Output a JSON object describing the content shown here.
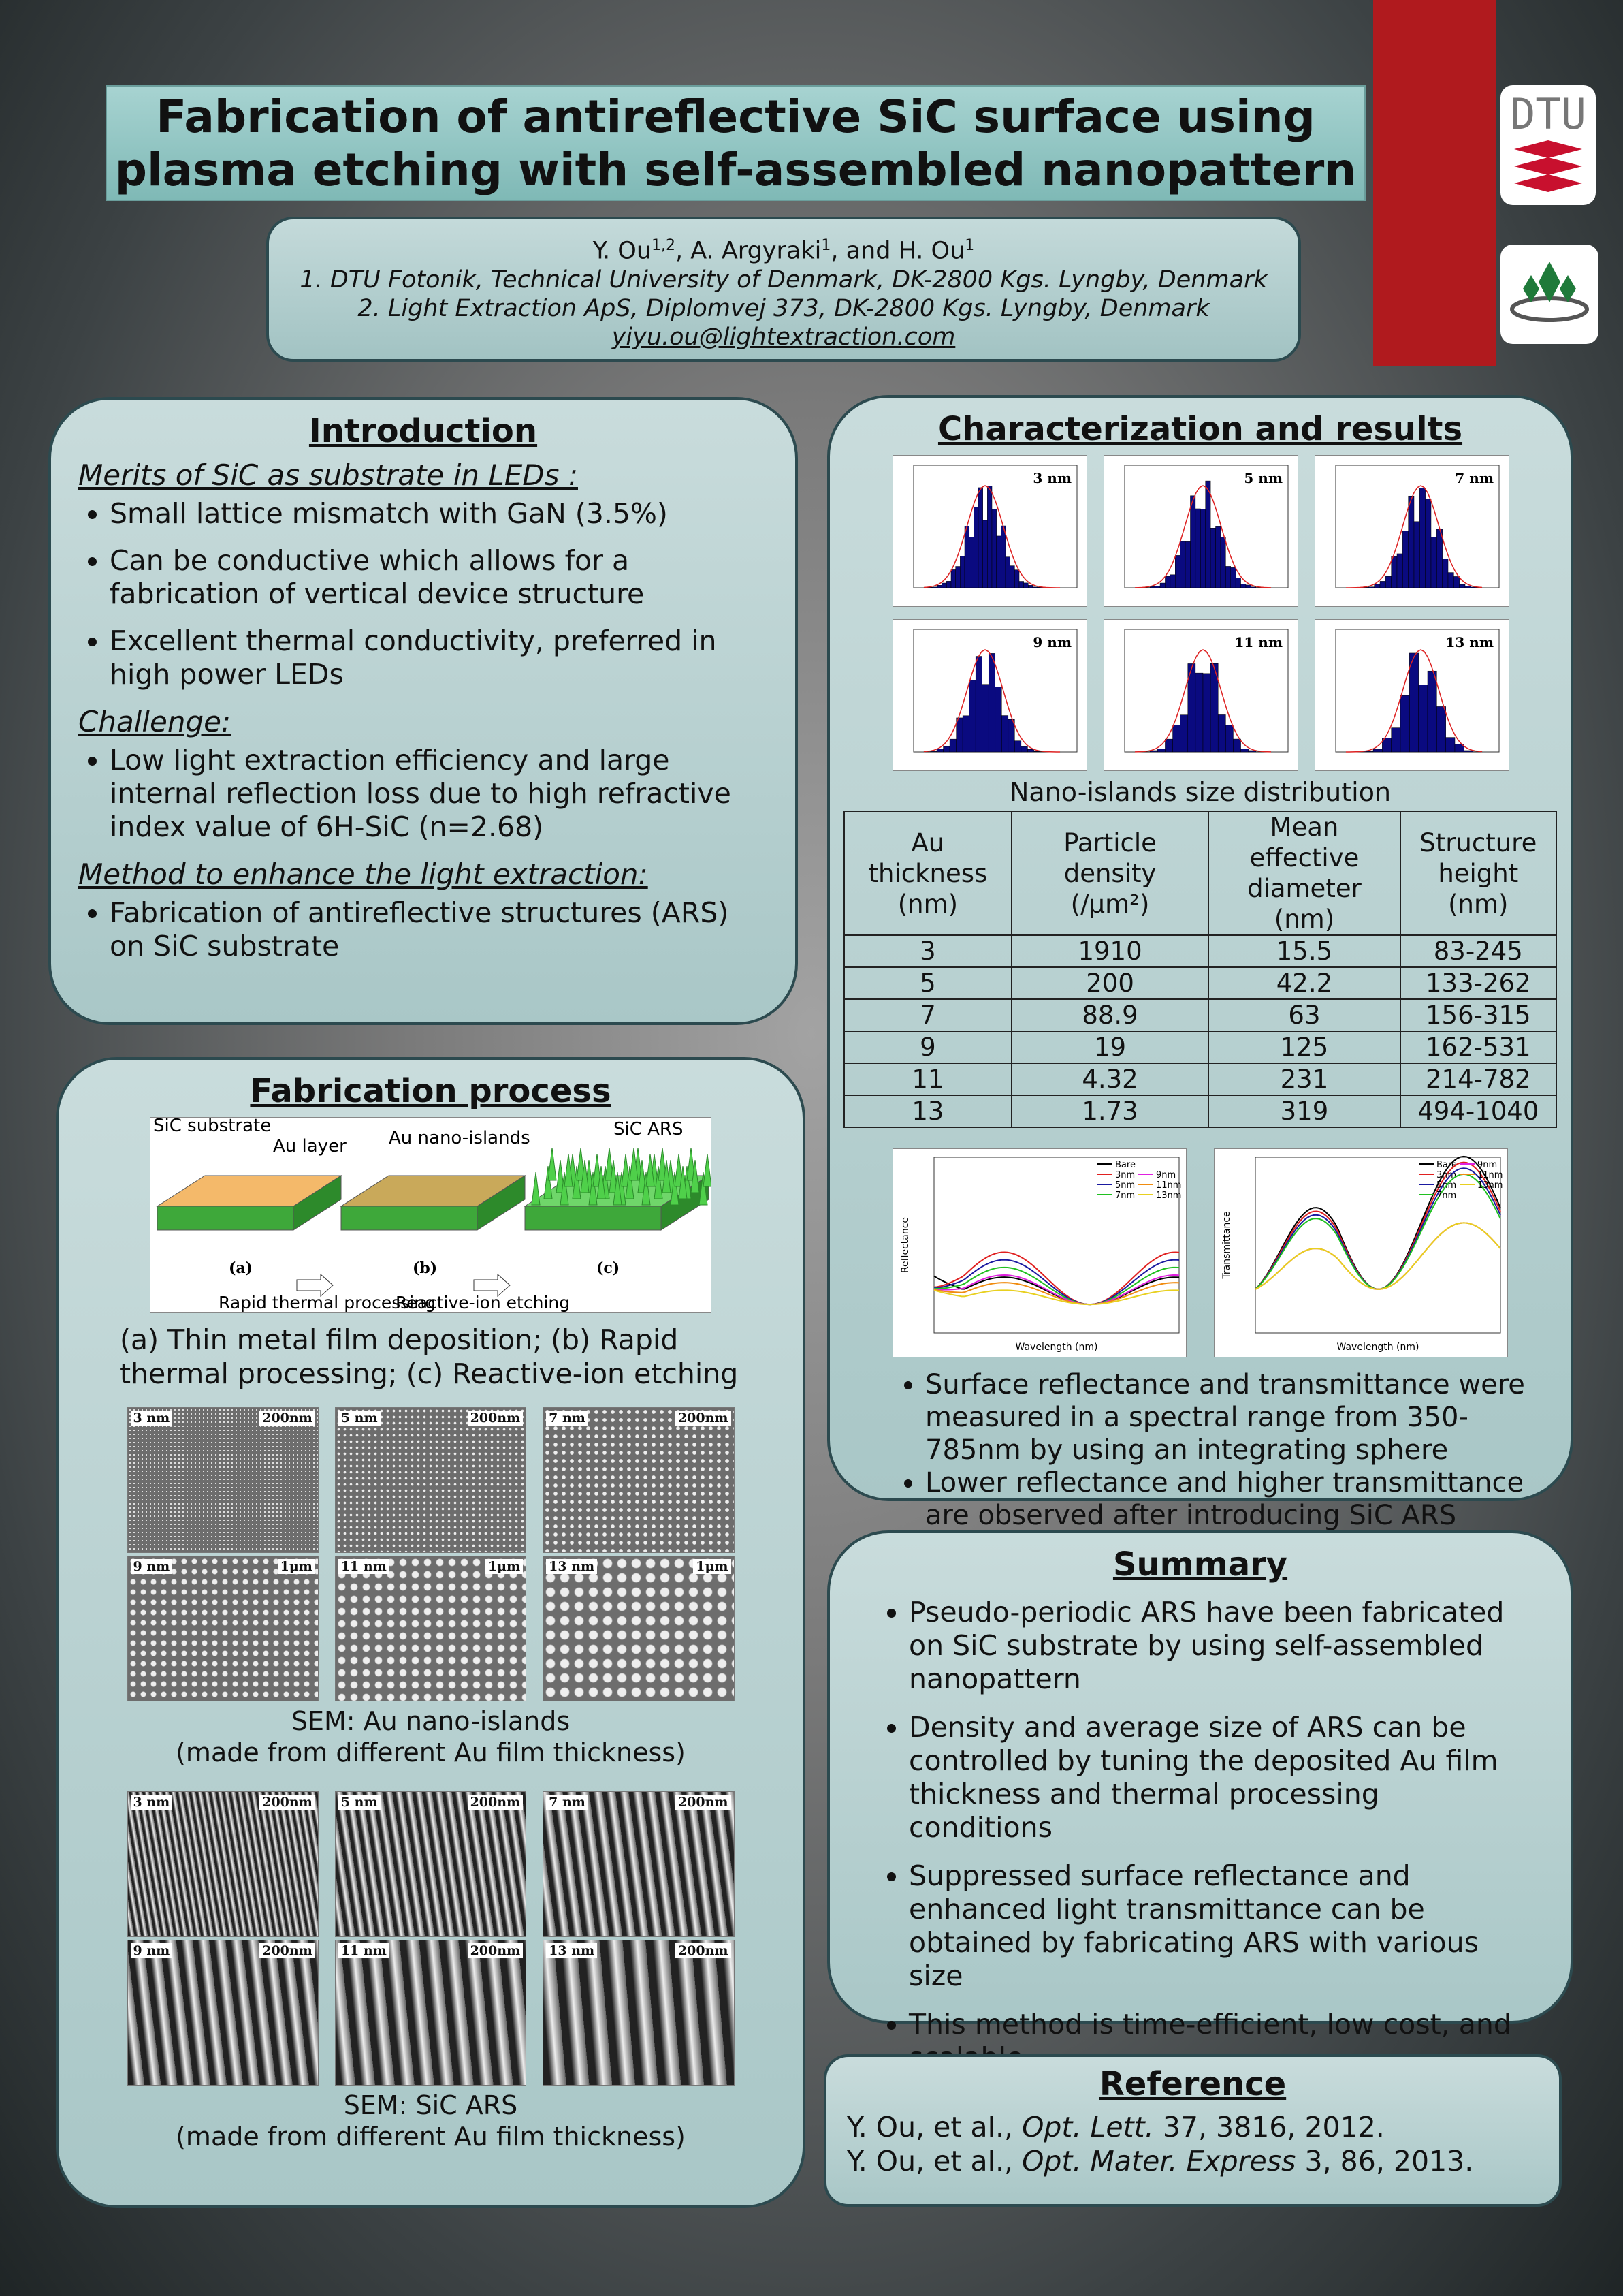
{
  "header": {
    "title": [
      "Fabrication of antireflective SiC surface using",
      "plasma etching with self-assembled nanopattern"
    ],
    "authors": [
      {
        "name": "Y. Ou",
        "affiliation": "1,2"
      },
      {
        "name": "A. Argyraki",
        "affiliation": "1"
      },
      {
        "name": "H. Ou",
        "affiliation": "1"
      }
    ],
    "author_separators": [
      ", ",
      ", and "
    ],
    "affiliations": [
      "1. DTU Fotonik, Technical University of Denmark, DK-2800 Kgs. Lyngby, Denmark",
      "2. Light Extraction ApS, Diplomvej 373, DK-2800 Kgs. Lyngby, Denmark"
    ],
    "email": "yiyu.ou@lightextraction.com"
  },
  "logos": {
    "dtu": "DTU"
  },
  "introduction": {
    "heading": "Introduction",
    "groups": [
      {
        "subheading": "Merits of SiC as substrate in LEDs :",
        "bullets": [
          "Small lattice mismatch with GaN (3.5%)",
          "Can be conductive which allows for a fabrication of vertical device structure",
          "Excellent thermal conductivity, preferred in high power LEDs"
        ]
      },
      {
        "subheading": "Challenge:",
        "bullets": [
          "Low light extraction efficiency and large internal reflection loss due to high refractive index value of 6H-SiC (n=2.68)"
        ]
      },
      {
        "subheading": "Method to enhance the light extraction:",
        "bullets": [
          "Fabrication of antireflective structures (ARS) on SiC substrate"
        ]
      }
    ]
  },
  "fabrication": {
    "heading": "Fabrication process",
    "schematic": {
      "substrate": "SiC substrate",
      "layer": "Au layer",
      "islands": "Au nano-islands",
      "ars": "SiC ARS",
      "steps": [
        "(a)",
        "(b)",
        "(c)"
      ],
      "arrows": [
        "Rapid thermal processing",
        "Reactive-ion etching"
      ]
    },
    "schematic_caption": "(a) Thin metal film deposition; (b) Rapid thermal processing; (c) Reactive-ion etching",
    "sem_islands": {
      "panels": [
        {
          "thickness": "3 nm",
          "scale": "200nm"
        },
        {
          "thickness": "5 nm",
          "scale": "200nm"
        },
        {
          "thickness": "7 nm",
          "scale": "200nm"
        },
        {
          "thickness": "9 nm",
          "scale": "1μm"
        },
        {
          "thickness": "11 nm",
          "scale": "1μm"
        },
        {
          "thickness": "13 nm",
          "scale": "1μm"
        }
      ],
      "caption": [
        "SEM: Au nano-islands",
        "(made from different Au film thickness)"
      ]
    },
    "sem_ars": {
      "panels": [
        {
          "thickness": "3 nm",
          "scale": "200nm"
        },
        {
          "thickness": "5 nm",
          "scale": "200nm"
        },
        {
          "thickness": "7 nm",
          "scale": "200nm"
        },
        {
          "thickness": "9 nm",
          "scale": "200nm"
        },
        {
          "thickness": "11 nm",
          "scale": "200nm"
        },
        {
          "thickness": "13 nm",
          "scale": "200nm"
        }
      ],
      "caption": [
        "SEM: SiC ARS",
        "(made from different Au film thickness)"
      ]
    }
  },
  "results": {
    "heading": "Characterization and results",
    "histograms": [
      "3 nm",
      "5 nm",
      "7 nm",
      "9 nm",
      "11 nm",
      "13 nm"
    ],
    "histogram_caption": "Nano-islands size distribution",
    "table": {
      "header": [
        [
          "Au thickness",
          "(nm)"
        ],
        [
          "Particle density",
          "(/μm²)"
        ],
        [
          "Mean effective",
          "diameter (nm)"
        ],
        [
          "Structure",
          "height (nm)"
        ]
      ],
      "rows": [
        [
          "3",
          "1910",
          "15.5",
          "83-245"
        ],
        [
          "5",
          "200",
          "42.2",
          "133-262"
        ],
        [
          "7",
          "88.9",
          "63",
          "156-315"
        ],
        [
          "9",
          "19",
          "125",
          "162-531"
        ],
        [
          "11",
          "4.32",
          "231",
          "214-782"
        ],
        [
          "13",
          "1.73",
          "319",
          "494-1040"
        ]
      ]
    },
    "spectra": [
      {
        "y_label": "Reflectance",
        "x_label": "Wavelength (nm)"
      },
      {
        "y_label": "Transmittance",
        "x_label": "Wavelength (nm)"
      }
    ],
    "legend": [
      {
        "name": "Bare",
        "color": "#000000"
      },
      {
        "name": "3nm",
        "color": "#e02020"
      },
      {
        "name": "5nm",
        "color": "#1a1aa0"
      },
      {
        "name": "7nm",
        "color": "#20c020"
      },
      {
        "name": "9nm",
        "color": "#e020e0"
      },
      {
        "name": "11nm",
        "color": "#f08c10"
      },
      {
        "name": "13nm",
        "color": "#e8d020"
      }
    ],
    "bullets": [
      "Surface reflectance and transmittance were measured in a spectral range from 350-785nm by using an integrating sphere",
      "Lower reflectance and higher transmittance are observed after introducing SiC ARS"
    ]
  },
  "summary": {
    "heading": "Summary",
    "bullets": [
      "Pseudo-periodic ARS have been fabricated on SiC substrate by using self-assembled nanopattern",
      "Density and average size of ARS can be controlled by tuning the deposited Au film thickness and thermal processing conditions",
      "Suppressed surface reflectance and enhanced light transmittance can be obtained by fabricating ARS with various size",
      "This method is time-efficient, low cost, and scalable"
    ]
  },
  "reference": {
    "heading": "Reference",
    "items": [
      {
        "authors": "Y. Ou, et al., ",
        "journal": "Opt. Lett.",
        "details": " 37, 3816, 2012."
      },
      {
        "authors": "Y. Ou, et al., ",
        "journal": "Opt. Mater. Express",
        "details": " 3, 86, 2013."
      }
    ]
  }
}
